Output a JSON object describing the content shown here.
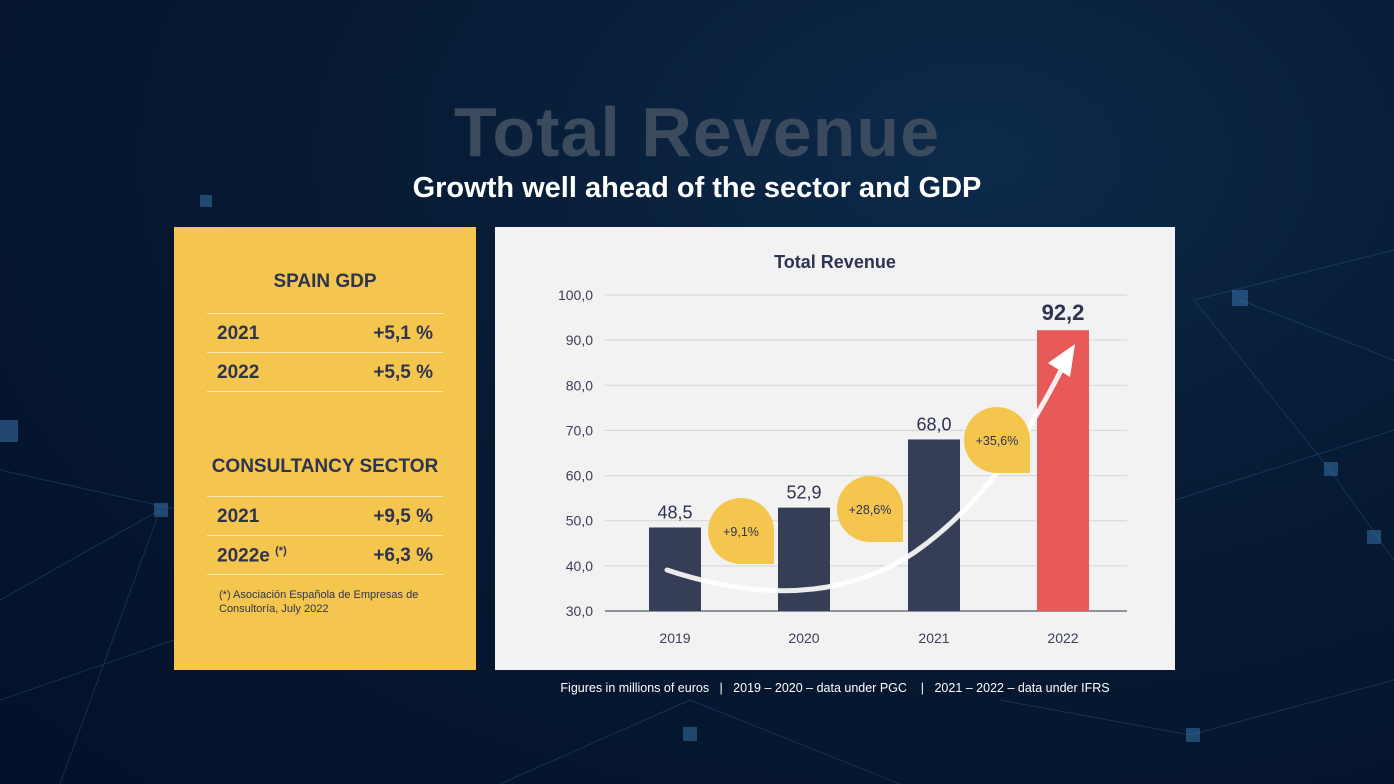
{
  "title": "Total Revenue",
  "subtitle": "Growth well ahead of the sector and GDP",
  "spain_gdp": {
    "heading": "SPAIN GDP",
    "rows": [
      {
        "year": "2021",
        "sup": "",
        "value": "+5,1 %"
      },
      {
        "year": "2022",
        "sup": "",
        "value": "+5,5 %"
      }
    ]
  },
  "consultancy": {
    "heading": "CONSULTANCY SECTOR",
    "rows": [
      {
        "year": "2021",
        "sup": "",
        "value": "+9,5 %"
      },
      {
        "year": "2022e",
        "sup": "(*)",
        "value": "+6,3 %"
      }
    ]
  },
  "footnote": "(*) Asociación Española de Empresas de Consultoría, July 2022",
  "bottom_note": "Figures in millions of euros   |   2019 – 2020 – data under PGC    |   2021 – 2022 – data under IFRS",
  "colors": {
    "bar": "#363d57",
    "highlight": "#e85a5a",
    "bubble": "#f4c64e",
    "text": "#2e3350"
  },
  "chart_data": {
    "type": "bar",
    "title": "Total Revenue",
    "categories": [
      "2019",
      "2020",
      "2021",
      "2022"
    ],
    "values": [
      48.5,
      52.9,
      68.0,
      92.2
    ],
    "value_labels": [
      "48,5",
      "52,9",
      "68,0",
      "92,2"
    ],
    "ylim": [
      30,
      100
    ],
    "yticks": [
      "30,0",
      "40,0",
      "50,0",
      "60,0",
      "70,0",
      "80,0",
      "90,0",
      "100,0"
    ],
    "grid": true,
    "growth_labels": [
      "+9,1%",
      "+28,6%",
      "+35,6%"
    ]
  }
}
